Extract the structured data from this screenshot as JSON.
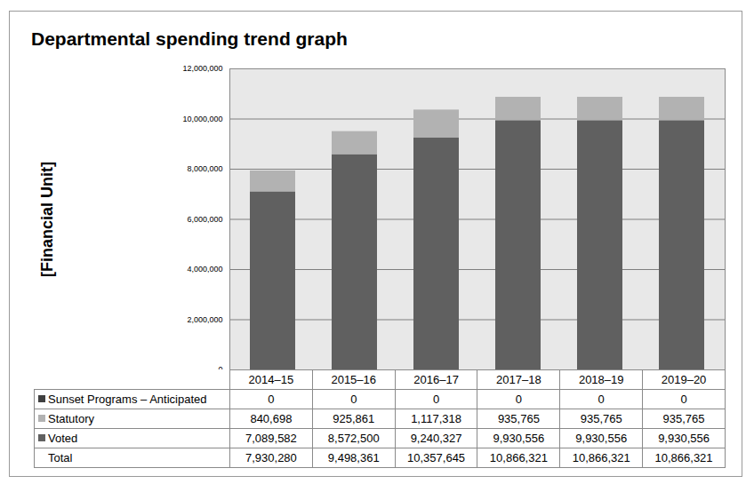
{
  "chart_data": {
    "type": "bar",
    "title": "Departmental spending trend graph",
    "ylabel": "[Financial Unit]",
    "categories": [
      "2014–15",
      "2015–16",
      "2016–17",
      "2017–18",
      "2018–19",
      "2019–20"
    ],
    "stacked": true,
    "grid": true,
    "ylim": [
      0,
      12000000
    ],
    "yticks": [
      {
        "value": 0,
        "label": "0"
      },
      {
        "value": 2000000,
        "label": "2,000,000"
      },
      {
        "value": 4000000,
        "label": "4,000,000"
      },
      {
        "value": 6000000,
        "label": "6,000,000"
      },
      {
        "value": 8000000,
        "label": "8,000,000"
      },
      {
        "value": 10000000,
        "label": "10,000,000"
      },
      {
        "value": 12000000,
        "label": "12,000,000"
      }
    ],
    "series": [
      {
        "name": "Sunset Programs – Anticipated",
        "color": "#404040",
        "values": [
          0,
          0,
          0,
          0,
          0,
          0
        ]
      },
      {
        "name": "Statutory",
        "color": "#b2b2b2",
        "values": [
          840698,
          925861,
          1117318,
          935765,
          935765,
          935765
        ],
        "value_labels": [
          "840,698",
          "925,861",
          "1,117,318",
          "935,765",
          "935,765",
          "935,765"
        ]
      },
      {
        "name": "Voted",
        "color": "#606060",
        "values": [
          7089582,
          8572500,
          9240327,
          9930556,
          9930556,
          9930556
        ],
        "value_labels": [
          "7,089,582",
          "8,572,500",
          "9,240,327",
          "9,930,556",
          "9,930,556",
          "9,930,556"
        ]
      }
    ],
    "totals": {
      "name": "Total",
      "values": [
        7930280,
        9498361,
        10357645,
        10866321,
        10866321,
        10866321
      ],
      "value_labels": [
        "7,930,280",
        "9,498,361",
        "10,357,645",
        "10,866,321",
        "10,866,321",
        "10,866,321"
      ]
    }
  }
}
